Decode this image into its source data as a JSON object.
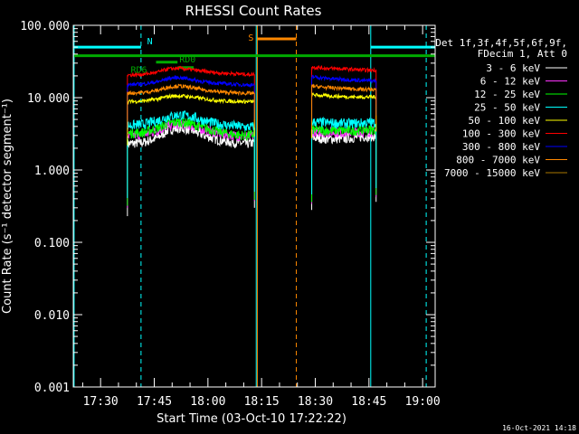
{
  "chart_data": {
    "type": "line",
    "title": "RHESSI Count Rates",
    "xlabel": "Start Time (03-Oct-10 17:22:22)",
    "ylabel": "Count Rate (s⁻¹ detector segment⁻¹)",
    "x_ticks": [
      "17:30",
      "17:45",
      "18:00",
      "18:15",
      "18:30",
      "18:45",
      "19:00"
    ],
    "x_tick_minutes": [
      1050,
      1065,
      1080,
      1095,
      1110,
      1125,
      1140
    ],
    "xlim_minutes": [
      1042.37,
      1143.5
    ],
    "y_scale": "log",
    "ylim": [
      0.001,
      100
    ],
    "y_ticks": [
      "0.001",
      "0.010",
      "0.100",
      "1.000",
      "10.000",
      "100.000"
    ],
    "y_tick_values": [
      0.001,
      0.01,
      0.1,
      1,
      10,
      100
    ],
    "legend_header": [
      "Det 1f,3f,4f,5f,6f,9f,",
      "FDecim 1, Att 0"
    ],
    "legend_position": "right",
    "series": [
      {
        "name": "3 - 6 keV",
        "color": "#ffffff",
        "segments": [
          {
            "points": [
              [
                1057.5,
                2.3
              ],
              [
                1062,
                2.4
              ],
              [
                1066,
                2.8
              ],
              [
                1069,
                3.6
              ],
              [
                1072,
                3.8
              ],
              [
                1075,
                3.6
              ],
              [
                1079,
                3.0
              ],
              [
                1083,
                2.6
              ],
              [
                1087,
                2.4
              ],
              [
                1091,
                2.3
              ],
              [
                1093,
                2.4
              ]
            ]
          },
          {
            "points": [
              [
                1109,
                2.8
              ],
              [
                1113,
                2.7
              ],
              [
                1117,
                2.7
              ],
              [
                1121,
                2.8
              ],
              [
                1124,
                2.9
              ],
              [
                1127,
                2.9
              ]
            ]
          }
        ]
      },
      {
        "name": "6 - 12 keV",
        "color": "#ff33ff",
        "segments": [
          {
            "points": [
              [
                1057.5,
                3.0
              ],
              [
                1062,
                3.1
              ],
              [
                1066,
                3.5
              ],
              [
                1069,
                4.1
              ],
              [
                1072,
                4.3
              ],
              [
                1075,
                4.1
              ],
              [
                1079,
                3.6
              ],
              [
                1083,
                3.2
              ],
              [
                1087,
                3.0
              ],
              [
                1091,
                2.9
              ],
              [
                1093,
                3.0
              ]
            ]
          },
          {
            "points": [
              [
                1109,
                3.4
              ],
              [
                1113,
                3.3
              ],
              [
                1117,
                3.3
              ],
              [
                1121,
                3.3
              ],
              [
                1124,
                3.4
              ],
              [
                1127,
                3.4
              ]
            ]
          }
        ]
      },
      {
        "name": "12 - 25 keV",
        "color": "#00ff00",
        "segments": [
          {
            "points": [
              [
                1057.5,
                3.2
              ],
              [
                1062,
                3.3
              ],
              [
                1066,
                3.8
              ],
              [
                1069,
                4.4
              ],
              [
                1072,
                4.6
              ],
              [
                1075,
                4.4
              ],
              [
                1079,
                3.8
              ],
              [
                1083,
                3.4
              ],
              [
                1087,
                3.1
              ],
              [
                1091,
                3.0
              ],
              [
                1093,
                3.1
              ]
            ]
          },
          {
            "points": [
              [
                1109,
                3.6
              ],
              [
                1113,
                3.5
              ],
              [
                1117,
                3.5
              ],
              [
                1121,
                3.5
              ],
              [
                1124,
                3.6
              ],
              [
                1127,
                3.6
              ]
            ]
          }
        ]
      },
      {
        "name": "25 - 50 keV",
        "color": "#00ffff",
        "segments": [
          {
            "points": [
              [
                1057.5,
                4.1
              ],
              [
                1062,
                4.3
              ],
              [
                1066,
                4.8
              ],
              [
                1069,
                5.5
              ],
              [
                1072,
                5.8
              ],
              [
                1075,
                5.5
              ],
              [
                1079,
                4.8
              ],
              [
                1083,
                4.3
              ],
              [
                1087,
                4.1
              ],
              [
                1091,
                3.9
              ],
              [
                1093,
                4.0
              ]
            ]
          },
          {
            "points": [
              [
                1109,
                4.6
              ],
              [
                1113,
                4.5
              ],
              [
                1117,
                4.4
              ],
              [
                1121,
                4.4
              ],
              [
                1124,
                4.5
              ],
              [
                1127,
                4.5
              ]
            ]
          }
        ]
      },
      {
        "name": "50 - 100 keV",
        "color": "#ffff00",
        "segments": [
          {
            "points": [
              [
                1057.5,
                8.8
              ],
              [
                1062,
                9.0
              ],
              [
                1066,
                9.6
              ],
              [
                1069,
                10.4
              ],
              [
                1072,
                10.6
              ],
              [
                1075,
                10.3
              ],
              [
                1079,
                9.6
              ],
              [
                1083,
                9.1
              ],
              [
                1087,
                8.9
              ],
              [
                1091,
                8.8
              ],
              [
                1093,
                8.8
              ]
            ]
          },
          {
            "points": [
              [
                1109,
                11.0
              ],
              [
                1113,
                10.6
              ],
              [
                1117,
                10.4
              ],
              [
                1121,
                10.2
              ],
              [
                1124,
                10.2
              ],
              [
                1127,
                10.2
              ]
            ]
          }
        ]
      },
      {
        "name": "100 - 300 keV",
        "color": "#ff0000",
        "segments": [
          {
            "points": [
              [
                1057.5,
                20.5
              ],
              [
                1062,
                21.0
              ],
              [
                1066,
                22.5
              ],
              [
                1069,
                25.0
              ],
              [
                1072,
                25.5
              ],
              [
                1075,
                24.5
              ],
              [
                1079,
                23.0
              ],
              [
                1083,
                22.0
              ],
              [
                1087,
                21.5
              ],
              [
                1091,
                21.0
              ],
              [
                1093,
                21.0
              ]
            ]
          },
          {
            "points": [
              [
                1109,
                26.5
              ],
              [
                1113,
                25.5
              ],
              [
                1117,
                25.0
              ],
              [
                1121,
                24.5
              ],
              [
                1124,
                24.0
              ],
              [
                1127,
                24.0
              ]
            ]
          }
        ]
      },
      {
        "name": "300 - 800 keV",
        "color": "#0000ff",
        "segments": [
          {
            "points": [
              [
                1057.5,
                15.0
              ],
              [
                1062,
                15.5
              ],
              [
                1066,
                16.5
              ],
              [
                1069,
                18.5
              ],
              [
                1072,
                19.0
              ],
              [
                1075,
                18.0
              ],
              [
                1079,
                16.5
              ],
              [
                1083,
                15.8
              ],
              [
                1087,
                15.3
              ],
              [
                1091,
                15.0
              ],
              [
                1093,
                15.0
              ]
            ]
          },
          {
            "points": [
              [
                1109,
                19.5
              ],
              [
                1113,
                18.5
              ],
              [
                1117,
                18.0
              ],
              [
                1121,
                17.5
              ],
              [
                1124,
                17.2
              ],
              [
                1127,
                17.0
              ]
            ]
          }
        ]
      },
      {
        "name": "800 - 7000 keV",
        "color": "#ff8800",
        "segments": [
          {
            "points": [
              [
                1057.5,
                11.5
              ],
              [
                1062,
                11.8
              ],
              [
                1066,
                12.6
              ],
              [
                1069,
                14.0
              ],
              [
                1072,
                14.5
              ],
              [
                1075,
                13.8
              ],
              [
                1079,
                12.8
              ],
              [
                1083,
                12.0
              ],
              [
                1087,
                11.7
              ],
              [
                1091,
                11.5
              ],
              [
                1093,
                11.5
              ]
            ]
          },
          {
            "points": [
              [
                1109,
                14.5
              ],
              [
                1113,
                13.8
              ],
              [
                1117,
                13.5
              ],
              [
                1121,
                13.2
              ],
              [
                1124,
                13.0
              ],
              [
                1127,
                13.0
              ]
            ]
          }
        ]
      },
      {
        "name": "7000 - 15000 keV",
        "color": "#aa7700",
        "segments": []
      }
    ],
    "annotations": [
      {
        "text": "N",
        "color": "#00ffff"
      },
      {
        "text": "S",
        "color": "#ff8800"
      },
      {
        "text": "RD6",
        "color": "#00aa00"
      },
      {
        "text": "RD0",
        "color": "#00aa00"
      }
    ],
    "vertical_lines": [
      {
        "minute": 1042.6,
        "color": "#00ffff",
        "style": "solid"
      },
      {
        "minute": 1061.3,
        "color": "#00ffff",
        "style": "dashed"
      },
      {
        "minute": 1093.5,
        "color": "#00ffff",
        "style": "solid"
      },
      {
        "minute": 1093.8,
        "color": "#ff8800",
        "style": "solid"
      },
      {
        "minute": 1104.7,
        "color": "#ff8800",
        "style": "dashed"
      },
      {
        "minute": 1125.5,
        "color": "#00ffff",
        "style": "solid"
      },
      {
        "minute": 1141.0,
        "color": "#00ffff",
        "style": "dashed"
      }
    ],
    "horizontal_bars": [
      {
        "name": "night",
        "color": "#00ffff",
        "value": 50,
        "ranges": [
          [
            1042.6,
            1061.3
          ],
          [
            1125.5,
            1143.5
          ]
        ]
      },
      {
        "name": "saa",
        "color": "#ff8800",
        "value": 65,
        "ranges": [
          [
            1093.8,
            1104.7
          ]
        ]
      },
      {
        "name": "decim",
        "color": "#00aa00",
        "value": 38,
        "ranges": [
          [
            1042.6,
            1143.5
          ]
        ]
      },
      {
        "name": "rd6",
        "color": "#00aa00",
        "value": 31,
        "ranges": [
          [
            1065.5,
            1071.5
          ]
        ]
      },
      {
        "name": "rd0",
        "color": "#00aa00",
        "value": 26,
        "ranges": [
          [
            1071.5,
            1076.0
          ]
        ]
      }
    ]
  },
  "footer": {
    "timestamp": "16-Oct-2021 14:18"
  }
}
